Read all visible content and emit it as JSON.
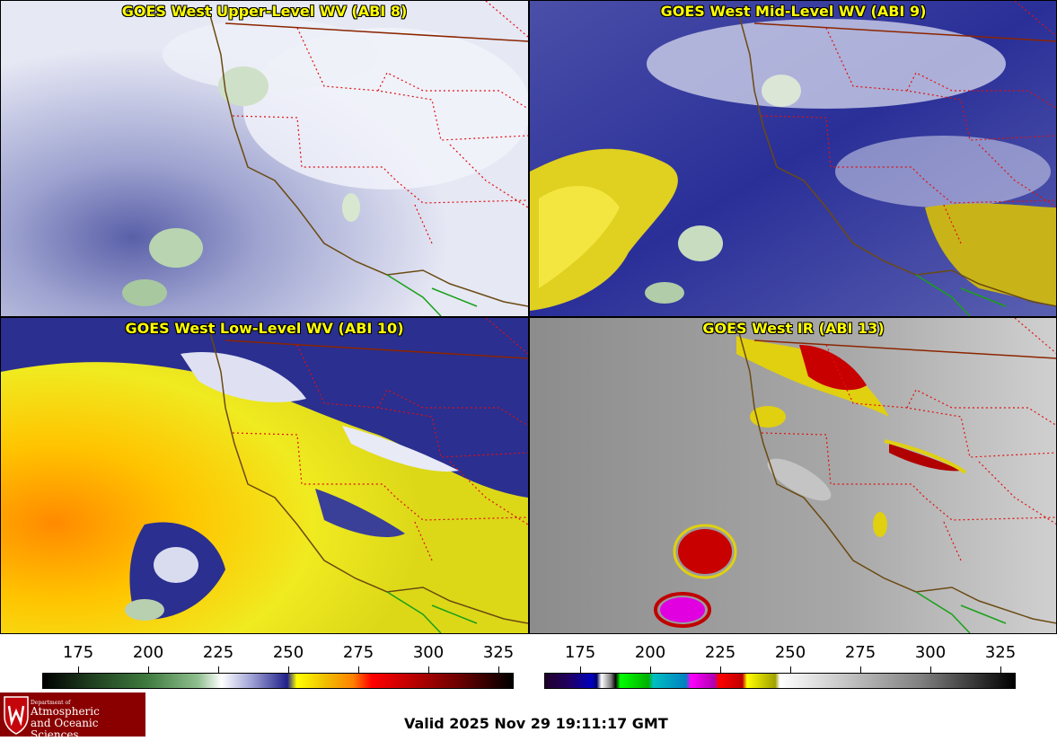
{
  "panels": [
    {
      "title": "GOES West Upper-Level WV (ABI 8)",
      "product": "upper-level-water-vapor"
    },
    {
      "title": "GOES West Mid-Level WV (ABI 9)",
      "product": "mid-level-water-vapor"
    },
    {
      "title": "GOES West Low-Level WV (ABI 10)",
      "product": "low-level-water-vapor"
    },
    {
      "title": "GOES West IR (ABI 13)",
      "product": "infrared"
    }
  ],
  "colorbars": {
    "left": {
      "ticks": [
        "175",
        "200",
        "225",
        "250",
        "275",
        "300",
        "325"
      ]
    },
    "right": {
      "ticks": [
        "175",
        "200",
        "225",
        "250",
        "275",
        "300",
        "325"
      ]
    }
  },
  "logo": {
    "department": "Department of",
    "line1": "Atmospheric",
    "line2": "and Oceanic Sciences"
  },
  "footer": {
    "valid_time": "Valid 2025 Nov 29 19:11:17 GMT"
  }
}
